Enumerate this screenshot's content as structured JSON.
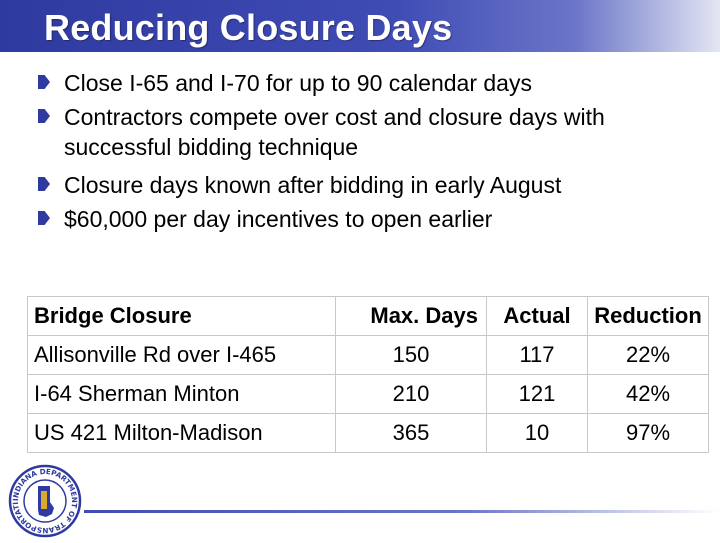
{
  "slide": {
    "title": "Reducing Closure Days",
    "bullets": [
      "Close I-65 and I-70 for up to 90 calendar days",
      "Contractors compete over cost and closure days with successful bidding technique",
      "Closure days known after bidding in early August",
      "$60,000 per day incentives to open earlier"
    ]
  },
  "table": {
    "headers": [
      "Bridge Closure",
      "Max. Days",
      "Actual",
      "Reduction"
    ],
    "rows": [
      [
        "Allisonville Rd over I-465",
        "150",
        "117",
        "22%"
      ],
      [
        "I-64 Sherman Minton",
        "210",
        "121",
        "42%"
      ],
      [
        "US 421 Milton-Madison",
        "365",
        "10",
        "97%"
      ]
    ]
  },
  "seal": {
    "text": "INDIANA DEPARTMENT OF TRANSPORTATION",
    "icon": "indot-seal-icon"
  },
  "colors": {
    "title_bar": "#2f3aa0",
    "bullet": "#2f3aa0",
    "seal": "#2f3aa0"
  }
}
